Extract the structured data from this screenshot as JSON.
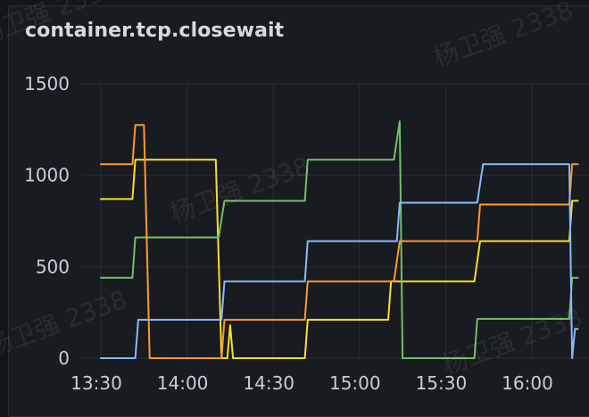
{
  "panel": {
    "title": "container.tcp.closewait"
  },
  "watermark": "杨卫强 2338",
  "colors": {
    "background": "#181b1f",
    "grid": "#2a2d33",
    "text": "#ccccdc",
    "series": [
      "#fade2a",
      "#73bf69",
      "#ff9830",
      "#8ab8ff"
    ]
  },
  "chart_data": {
    "type": "line",
    "title": "container.tcp.closewait",
    "xlabel": "",
    "ylabel": "",
    "x_ticks": [
      "13:30",
      "14:00",
      "14:30",
      "15:00",
      "15:30",
      "16:00"
    ],
    "y_ticks": [
      "1500",
      "1000",
      "500",
      "0"
    ],
    "ylim": [
      0,
      1500
    ],
    "x_range": [
      "13:30",
      "16:16"
    ],
    "grid": true,
    "legend": "none",
    "series": [
      {
        "color": "#fade2a",
        "points": [
          [
            "13:30",
            870
          ],
          [
            "13:41",
            870
          ],
          [
            "13:42",
            1085
          ],
          [
            "14:10",
            1085
          ],
          [
            "14:12",
            0
          ],
          [
            "14:14",
            0
          ],
          [
            "14:15",
            180
          ],
          [
            "14:16",
            0
          ],
          [
            "14:41",
            0
          ],
          [
            "14:42",
            210
          ],
          [
            "15:10",
            210
          ],
          [
            "15:11",
            420
          ],
          [
            "15:40",
            420
          ],
          [
            "15:42",
            640
          ],
          [
            "16:13",
            640
          ],
          [
            "16:14",
            860
          ],
          [
            "16:16",
            860
          ]
        ]
      },
      {
        "color": "#73bf69",
        "points": [
          [
            "13:30",
            440
          ],
          [
            "13:41",
            440
          ],
          [
            "13:42",
            660
          ],
          [
            "14:11",
            660
          ],
          [
            "14:13",
            860
          ],
          [
            "14:41",
            860
          ],
          [
            "14:42",
            1085
          ],
          [
            "15:12",
            1085
          ],
          [
            "15:14",
            1295
          ],
          [
            "15:15",
            0
          ],
          [
            "15:40",
            0
          ],
          [
            "15:41",
            215
          ],
          [
            "16:13",
            215
          ],
          [
            "16:14",
            440
          ],
          [
            "16:16",
            440
          ]
        ]
      },
      {
        "color": "#ff9830",
        "points": [
          [
            "13:30",
            1060
          ],
          [
            "13:41",
            1060
          ],
          [
            "13:42",
            1275
          ],
          [
            "13:45",
            1275
          ],
          [
            "13:47",
            0
          ],
          [
            "14:12",
            0
          ],
          [
            "14:13",
            210
          ],
          [
            "14:41",
            210
          ],
          [
            "14:42",
            420
          ],
          [
            "15:12",
            420
          ],
          [
            "15:14",
            640
          ],
          [
            "15:41",
            640
          ],
          [
            "15:42",
            840
          ],
          [
            "16:13",
            840
          ],
          [
            "16:14",
            1060
          ],
          [
            "16:16",
            1060
          ]
        ]
      },
      {
        "color": "#8ab8ff",
        "points": [
          [
            "13:30",
            0
          ],
          [
            "13:42",
            0
          ],
          [
            "13:43",
            210
          ],
          [
            "14:12",
            210
          ],
          [
            "14:13",
            420
          ],
          [
            "14:41",
            420
          ],
          [
            "14:42",
            640
          ],
          [
            "15:13",
            640
          ],
          [
            "15:14",
            850
          ],
          [
            "15:41",
            850
          ],
          [
            "15:43",
            1060
          ],
          [
            "16:13",
            1060
          ],
          [
            "16:14",
            0
          ],
          [
            "16:15",
            160
          ],
          [
            "16:16",
            160
          ]
        ]
      }
    ]
  }
}
